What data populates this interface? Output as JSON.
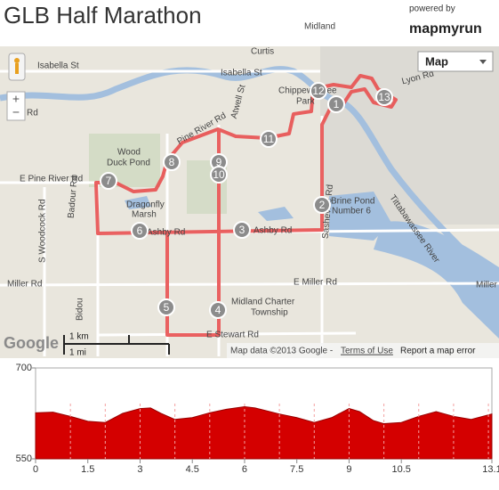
{
  "header": {
    "title": "GLB Half Marathon",
    "powered_by": "powered by",
    "brand": "mapmyrun"
  },
  "map": {
    "map_type": "Map",
    "zoom": [
      "+",
      "−"
    ],
    "labels": [
      "Midland",
      "Curtis",
      "Isabella St",
      "Isabella St",
      "Rd",
      "Chippewassee",
      "Park",
      "Lyon Rd",
      "Atwell St",
      "Wood",
      "Duck Pond",
      "Pine River Rd",
      "E Pine River Rd",
      "Badour Rd",
      "Dragonfly",
      "Marsh",
      "Ashby Rd",
      "Ashby Rd",
      "Brine Pond",
      "Number 6",
      "Sasheville Rd",
      "Tittabawassee River",
      "S Woodcock Rd",
      "Miller Rd",
      "E Miller Rd",
      "Midland Charter",
      "Township",
      "E Stewart Rd",
      "Bidou",
      "Miller Rd"
    ],
    "markers": [
      1,
      2,
      3,
      4,
      5,
      6,
      7,
      8,
      9,
      10,
      11,
      12,
      13
    ],
    "scale": [
      "1 km",
      "1 mi"
    ],
    "google": "Google",
    "attribution": "Map data ©2013 Google -",
    "terms": "Terms of Use",
    "report": "Report a map error"
  },
  "elevation": {
    "ylim": [
      550,
      700
    ],
    "yticks": [
      550,
      700
    ],
    "xlim": [
      0,
      13.1
    ],
    "xticks": [
      0,
      1.5,
      3,
      4.5,
      6,
      7.5,
      9,
      10.5,
      13.1
    ],
    "color": "#d40000",
    "x": [
      0,
      0.5,
      1,
      1.5,
      2,
      2.5,
      3,
      3.3,
      3.6,
      4,
      4.5,
      5,
      5.5,
      6,
      6.3,
      7,
      7.5,
      8,
      8.5,
      9,
      9.3,
      9.7,
      10,
      10.5,
      11,
      11.5,
      12,
      12.5,
      13.1
    ],
    "values": [
      626,
      627,
      620,
      612,
      610,
      625,
      633,
      634,
      625,
      615,
      618,
      626,
      632,
      636,
      634,
      624,
      618,
      610,
      618,
      633,
      628,
      613,
      608,
      610,
      620,
      628,
      620,
      615,
      624
    ]
  }
}
